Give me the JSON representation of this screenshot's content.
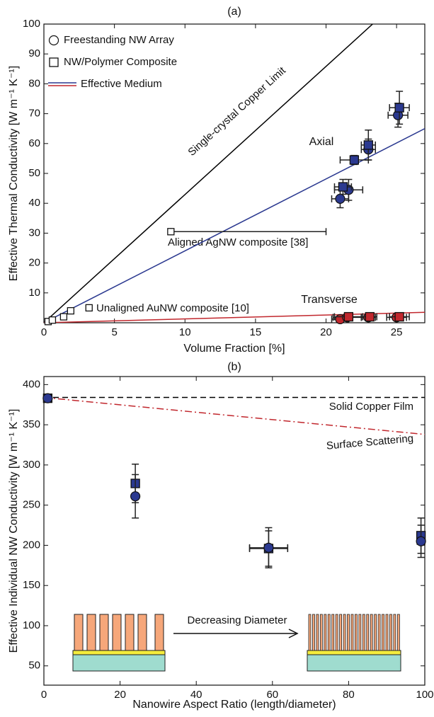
{
  "chart_data": [
    {
      "type": "scatter",
      "title": "(a)",
      "x_label": "Volume Fraction [%]",
      "y_label": "Effective Thermal Conductivity [W m⁻¹ K⁻¹]",
      "xlim": [
        0,
        27
      ],
      "ylim": [
        0,
        100
      ],
      "xticks": [
        0,
        5,
        10,
        15,
        20,
        25
      ],
      "yticks": [
        10,
        20,
        30,
        40,
        50,
        60,
        70,
        80,
        90,
        100
      ],
      "lines": [
        {
          "label": "Single-crystal Copper Limit",
          "color": "#000000",
          "x": [
            0,
            23.3
          ],
          "values": [
            0,
            100
          ]
        },
        {
          "label": "Axial",
          "color": "#2b3990",
          "x": [
            0,
            27
          ],
          "values": [
            0,
            65
          ],
          "in_legend": true
        },
        {
          "label": "Transverse",
          "color": "#c1272d",
          "x": [
            0,
            27
          ],
          "values": [
            0,
            3.5
          ],
          "in_legend": true
        }
      ],
      "line_legend": "Effective Medium",
      "series": [
        {
          "name": "Freestanding NW Array",
          "marker": "circle",
          "x": [
            21.0,
            21.6,
            23.0,
            25.1,
            21.0,
            21.5,
            23.0,
            25.0
          ],
          "values": [
            41.5,
            44.5,
            58,
            69.5,
            1.2,
            1.8,
            1.8,
            1.8
          ],
          "xerr": [
            0.6,
            1.0,
            0.5,
            0.7,
            0.6,
            1.0,
            0.5,
            0.7
          ],
          "yerr": [
            3,
            3.5,
            3.5,
            4,
            0.5,
            0.5,
            0.5,
            0.5
          ],
          "colors": [
            "#2b3990",
            "#2b3990",
            "#2b3990",
            "#2b3990",
            "#c1272d",
            "#c1272d",
            "#c1272d",
            "#c1272d"
          ]
        },
        {
          "name": "NW/Polymer Composite",
          "marker": "square",
          "x": [
            21.2,
            22.0,
            23.0,
            25.2,
            21.6,
            23.1,
            25.2
          ],
          "values": [
            45.5,
            54.5,
            59.5,
            72,
            2,
            2,
            2
          ],
          "xerr": [
            0.6,
            1.0,
            0.5,
            0.7,
            1.0,
            0.5,
            0.7
          ],
          "yerr": [
            2.5,
            1.5,
            5,
            5.5,
            0.5,
            0.5,
            0.5
          ],
          "colors": [
            "#2b3990",
            "#2b3990",
            "#2b3990",
            "#2b3990",
            "#c1272d",
            "#c1272d",
            "#c1272d"
          ]
        },
        {
          "marker": "open-square",
          "color": "#ffffff",
          "x": [
            0.3,
            0.6,
            1.4,
            1.9,
            3.2,
            9
          ],
          "values": [
            0.4,
            0.9,
            2,
            4,
            5,
            30.5
          ],
          "xerr": [
            null,
            null,
            null,
            null,
            null,
            [
              0,
              11
            ]
          ],
          "yerr": [
            null,
            null,
            null,
            null,
            null,
            null
          ]
        }
      ],
      "annotations": [
        "Aligned AgNW composite [38]",
        "Unaligned AuNW composite [10]"
      ]
    },
    {
      "type": "scatter",
      "title": "(b)",
      "x_label": "Nanowire Aspect Ratio (length/diameter)",
      "y_label": "Effective Individual NW Conductivity [W m⁻¹ K⁻¹]",
      "xlim": [
        0,
        100
      ],
      "ylim": [
        26,
        410
      ],
      "xticks": [
        0,
        20,
        40,
        60,
        80,
        100
      ],
      "yticks": [
        50,
        100,
        150,
        200,
        250,
        300,
        350,
        400
      ],
      "lines": [
        {
          "label": "Solid Copper Film",
          "color": "#000000",
          "dash": "8 5",
          "x": [
            0,
            100
          ],
          "values": [
            384,
            384
          ]
        },
        {
          "label": "Surface Scattering",
          "color": "#c1272d",
          "dash": "10 4 2 4",
          "x": [
            0,
            100
          ],
          "values": [
            384,
            338
          ]
        }
      ],
      "series": [
        {
          "marker": "square",
          "color": "#2b3990",
          "x": [
            1,
            24,
            59,
            99
          ],
          "values": [
            383,
            277,
            196,
            212
          ],
          "xerr": [
            null,
            null,
            5,
            1
          ],
          "yerr": [
            null,
            24,
            22,
            22
          ]
        },
        {
          "marker": "circle",
          "color": "#2b3990",
          "x": [
            1,
            24,
            59,
            99
          ],
          "values": [
            383,
            261,
            197,
            205
          ],
          "xerr": [
            null,
            null,
            5,
            1
          ],
          "yerr": [
            null,
            27,
            25,
            20
          ]
        }
      ],
      "annotations": [
        "Decreasing Diameter"
      ]
    }
  ]
}
